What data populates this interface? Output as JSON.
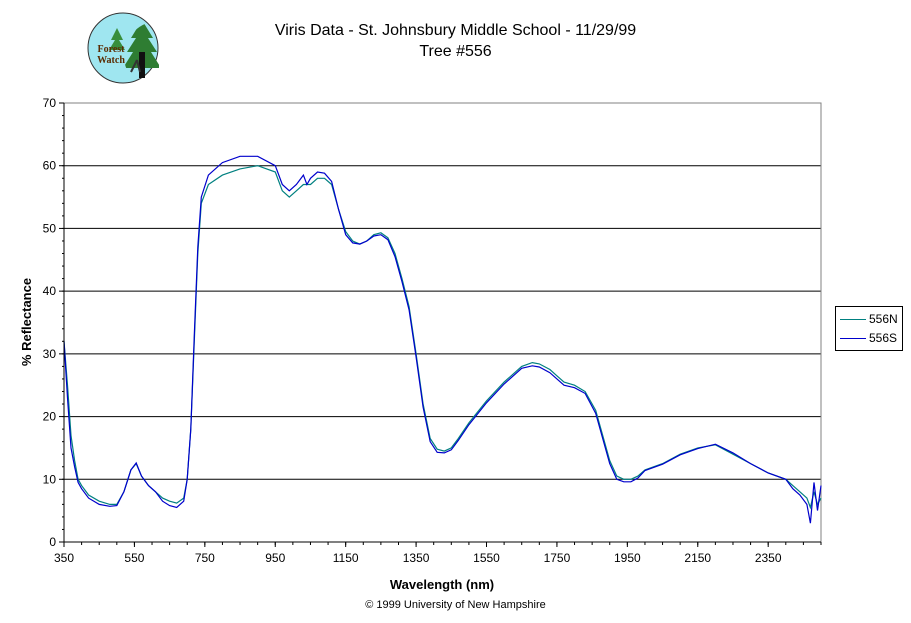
{
  "chart_data": {
    "type": "line",
    "title": "Viris Data - St. Johnsbury Middle School - 11/29/99",
    "subtitle": "Tree #556",
    "xlabel": "Wavelength (nm)",
    "ylabel": "% Reflectance",
    "xlim": [
      350,
      2500
    ],
    "ylim": [
      0,
      70
    ],
    "xticks": [
      350,
      550,
      750,
      950,
      1150,
      1350,
      1550,
      1750,
      1950,
      2150,
      2350
    ],
    "yticks": [
      0,
      10,
      20,
      30,
      40,
      50,
      60,
      70
    ],
    "grid": "horizontal",
    "legend_position": "right",
    "series": [
      {
        "name": "556N",
        "color": "#008080",
        "points": [
          [
            350,
            32
          ],
          [
            360,
            25
          ],
          [
            370,
            17
          ],
          [
            380,
            13
          ],
          [
            390,
            10
          ],
          [
            400,
            9
          ],
          [
            420,
            7.5
          ],
          [
            450,
            6.5
          ],
          [
            480,
            6
          ],
          [
            500,
            6
          ],
          [
            520,
            8
          ],
          [
            540,
            11.5
          ],
          [
            555,
            12.5
          ],
          [
            570,
            10.5
          ],
          [
            590,
            9
          ],
          [
            610,
            8
          ],
          [
            630,
            7
          ],
          [
            650,
            6.5
          ],
          [
            670,
            6.2
          ],
          [
            690,
            7
          ],
          [
            700,
            10
          ],
          [
            710,
            18
          ],
          [
            720,
            32
          ],
          [
            730,
            46
          ],
          [
            740,
            54
          ],
          [
            760,
            57
          ],
          [
            800,
            58.5
          ],
          [
            850,
            59.5
          ],
          [
            900,
            60
          ],
          [
            950,
            59
          ],
          [
            970,
            56
          ],
          [
            990,
            55
          ],
          [
            1010,
            56
          ],
          [
            1030,
            57
          ],
          [
            1050,
            57
          ],
          [
            1070,
            58
          ],
          [
            1090,
            58
          ],
          [
            1110,
            57
          ],
          [
            1130,
            53
          ],
          [
            1150,
            49.5
          ],
          [
            1170,
            48
          ],
          [
            1190,
            47.5
          ],
          [
            1210,
            48
          ],
          [
            1230,
            49
          ],
          [
            1250,
            49.3
          ],
          [
            1270,
            48.5
          ],
          [
            1290,
            46
          ],
          [
            1310,
            42
          ],
          [
            1330,
            37.5
          ],
          [
            1350,
            30
          ],
          [
            1370,
            22
          ],
          [
            1390,
            16.5
          ],
          [
            1410,
            14.8
          ],
          [
            1430,
            14.5
          ],
          [
            1450,
            15
          ],
          [
            1470,
            16.5
          ],
          [
            1500,
            19
          ],
          [
            1550,
            22.5
          ],
          [
            1600,
            25.5
          ],
          [
            1650,
            28
          ],
          [
            1680,
            28.6
          ],
          [
            1700,
            28.4
          ],
          [
            1730,
            27.5
          ],
          [
            1750,
            26.5
          ],
          [
            1770,
            25.5
          ],
          [
            1800,
            25
          ],
          [
            1830,
            24
          ],
          [
            1860,
            21
          ],
          [
            1880,
            17
          ],
          [
            1900,
            13
          ],
          [
            1920,
            10.5
          ],
          [
            1940,
            10
          ],
          [
            1960,
            10
          ],
          [
            1980,
            10.5
          ],
          [
            2000,
            11.5
          ],
          [
            2050,
            12.5
          ],
          [
            2100,
            14
          ],
          [
            2150,
            15
          ],
          [
            2200,
            15.5
          ],
          [
            2250,
            14
          ],
          [
            2300,
            12.5
          ],
          [
            2350,
            11
          ],
          [
            2400,
            10
          ],
          [
            2420,
            9
          ],
          [
            2440,
            8
          ],
          [
            2460,
            7
          ],
          [
            2470,
            5.5
          ],
          [
            2480,
            8
          ],
          [
            2490,
            6
          ],
          [
            2500,
            7
          ]
        ]
      },
      {
        "name": "556S",
        "color": "#0000cc",
        "points": [
          [
            350,
            32
          ],
          [
            360,
            23
          ],
          [
            370,
            15
          ],
          [
            380,
            12
          ],
          [
            390,
            9.5
          ],
          [
            400,
            8.5
          ],
          [
            420,
            7
          ],
          [
            450,
            6
          ],
          [
            480,
            5.7
          ],
          [
            500,
            5.8
          ],
          [
            520,
            8
          ],
          [
            540,
            11.5
          ],
          [
            555,
            12.6
          ],
          [
            570,
            10.5
          ],
          [
            590,
            9
          ],
          [
            610,
            8
          ],
          [
            630,
            6.5
          ],
          [
            650,
            5.8
          ],
          [
            670,
            5.5
          ],
          [
            690,
            6.5
          ],
          [
            700,
            10
          ],
          [
            710,
            18
          ],
          [
            720,
            33
          ],
          [
            730,
            47
          ],
          [
            740,
            55
          ],
          [
            760,
            58.5
          ],
          [
            800,
            60.5
          ],
          [
            850,
            61.5
          ],
          [
            900,
            61.5
          ],
          [
            950,
            60
          ],
          [
            970,
            57
          ],
          [
            990,
            56
          ],
          [
            1010,
            57
          ],
          [
            1030,
            58.5
          ],
          [
            1040,
            57
          ],
          [
            1050,
            58
          ],
          [
            1070,
            59
          ],
          [
            1090,
            58.8
          ],
          [
            1110,
            57.5
          ],
          [
            1130,
            53
          ],
          [
            1150,
            49
          ],
          [
            1170,
            47.7
          ],
          [
            1190,
            47.5
          ],
          [
            1210,
            48
          ],
          [
            1230,
            48.8
          ],
          [
            1250,
            49
          ],
          [
            1270,
            48.2
          ],
          [
            1290,
            45.5
          ],
          [
            1310,
            41.5
          ],
          [
            1330,
            37
          ],
          [
            1350,
            29.5
          ],
          [
            1370,
            21.5
          ],
          [
            1390,
            16
          ],
          [
            1410,
            14.3
          ],
          [
            1430,
            14.2
          ],
          [
            1450,
            14.7
          ],
          [
            1470,
            16.2
          ],
          [
            1500,
            18.7
          ],
          [
            1550,
            22.2
          ],
          [
            1600,
            25.2
          ],
          [
            1650,
            27.7
          ],
          [
            1680,
            28.1
          ],
          [
            1700,
            27.9
          ],
          [
            1730,
            27
          ],
          [
            1750,
            26
          ],
          [
            1770,
            25
          ],
          [
            1800,
            24.6
          ],
          [
            1830,
            23.7
          ],
          [
            1860,
            20.5
          ],
          [
            1880,
            16.5
          ],
          [
            1900,
            12.5
          ],
          [
            1920,
            10
          ],
          [
            1940,
            9.6
          ],
          [
            1960,
            9.6
          ],
          [
            1980,
            10.2
          ],
          [
            2000,
            11.4
          ],
          [
            2050,
            12.4
          ],
          [
            2100,
            13.9
          ],
          [
            2150,
            14.9
          ],
          [
            2200,
            15.6
          ],
          [
            2250,
            14.2
          ],
          [
            2300,
            12.5
          ],
          [
            2350,
            11
          ],
          [
            2400,
            10
          ],
          [
            2420,
            8.5
          ],
          [
            2440,
            7.5
          ],
          [
            2460,
            6
          ],
          [
            2470,
            3
          ],
          [
            2480,
            9.5
          ],
          [
            2490,
            5
          ],
          [
            2500,
            9
          ]
        ]
      }
    ],
    "footer": "© 1999 University of New Hampshire",
    "logo_text_1": "Forest",
    "logo_text_2": "Watch"
  }
}
